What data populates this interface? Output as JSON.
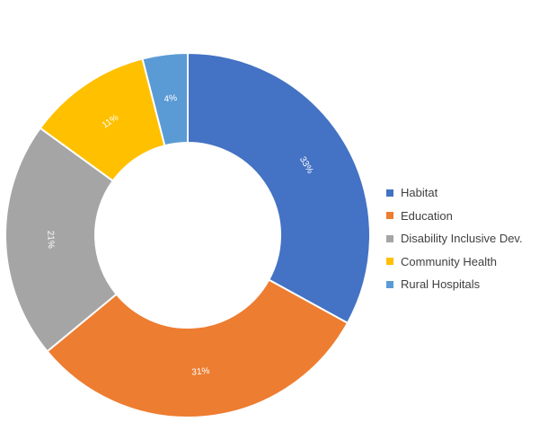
{
  "chart_data": {
    "type": "pie",
    "donut": true,
    "categories": [
      "Habitat",
      "Education",
      "Disability Inclusive Dev.",
      "Community Health",
      "Rural Hospitals"
    ],
    "values": [
      33,
      31,
      21,
      11,
      4
    ],
    "value_labels": [
      "33%",
      "31%",
      "21%",
      "11%",
      "4%"
    ],
    "colors": [
      "#4472C4",
      "#ED7D31",
      "#A5A5A5",
      "#FFC000",
      "#5B9BD5"
    ],
    "legend_position": "right",
    "title": ""
  }
}
